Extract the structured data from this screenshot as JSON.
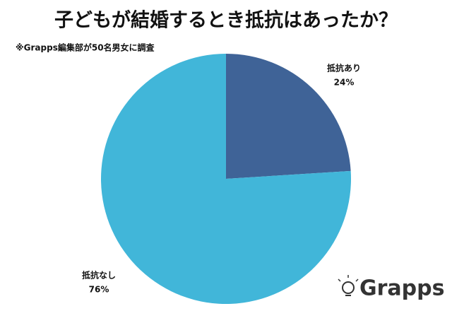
{
  "chart_data": {
    "type": "pie",
    "title": "子どもが結婚するとき抵抗はあったか？",
    "subtitle": "※Grapps編集部が50名男女に調査",
    "categories": [
      "抵抗あり",
      "抵抗なし"
    ],
    "values": [
      24,
      76
    ],
    "value_labels": [
      "24%",
      "76%"
    ],
    "colors": [
      "#3f6397",
      "#41b6d9"
    ],
    "logo": "Grapps"
  }
}
